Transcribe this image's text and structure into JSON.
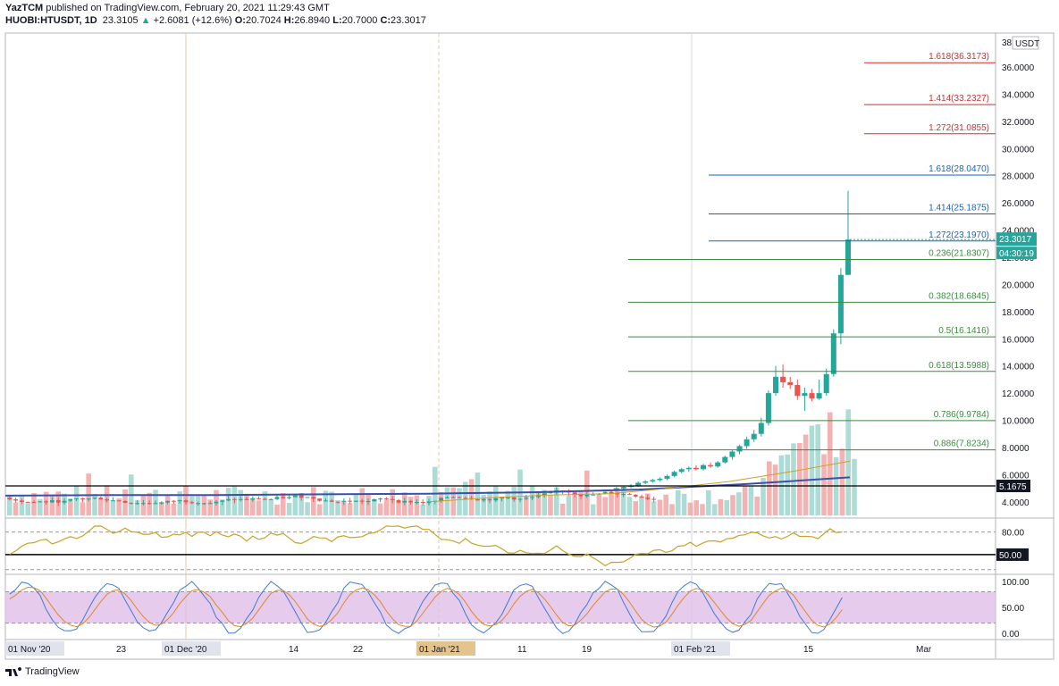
{
  "header": {
    "publisher": "YazTCM",
    "published_text": "published on TradingView.com, February 20, 2021 11:29:43 GMT",
    "symbol": "HUOBI:HTUSDT, 1D",
    "last": "23.3105",
    "change": "+2.6081 (+12.6%)",
    "o_label": "O:",
    "o": "20.7024",
    "h_label": "H:",
    "h": "26.8940",
    "l_label": "L:",
    "l": "20.7000",
    "c_label": "C:",
    "c": "23.3017"
  },
  "footer": {
    "brand": "TradingView"
  },
  "colors": {
    "up": "#26a69a",
    "down": "#ef5350",
    "fib_ext_red": "#d32f2f",
    "fib_ext_blue": "#1565c0",
    "fib_ret_green": "#388e3c",
    "ma_long": "#3f4fa5",
    "ma_short": "#c9a227",
    "rsi": "#c9a227",
    "stoch_k": "#3d7bd9",
    "stoch_d": "#e0872a",
    "stoch_band": "#e1bee7"
  },
  "chart_data": {
    "type": "candlestick",
    "title": "",
    "unit_label": "USDT",
    "price_axis": {
      "ticks": [
        "4.0000",
        "6.0000",
        "8.0000",
        "10.0000",
        "12.0000",
        "14.0000",
        "16.0000",
        "18.0000",
        "20.0000",
        "22.0000",
        "24.0000",
        "26.0000",
        "28.0000",
        "30.0000",
        "32.0000",
        "34.0000",
        "36.0000"
      ],
      "top_label": "38",
      "range": [
        3.0,
        38.5
      ]
    },
    "time_axis": {
      "labels": [
        "01 Nov '20",
        "23",
        "01 Dec '20",
        "14",
        "22",
        "01 Jan '21",
        "11",
        "19",
        "01 Feb '21",
        "15",
        "Mar"
      ],
      "highlighted": [
        "01 Nov '20",
        "01 Dec '20",
        "01 Jan '21",
        "01 Feb '21"
      ]
    },
    "current_price": {
      "value": 23.3017,
      "label": "23.3017",
      "countdown": "04:30:19"
    },
    "support_line": {
      "value": 5.1675,
      "label": "5.1675"
    },
    "fib_levels": [
      {
        "ratio": "1.618",
        "price": 36.3173,
        "label": "1.618(36.3173)",
        "kind": "ext_red"
      },
      {
        "ratio": "1.414",
        "price": 33.2327,
        "label": "1.414(33.2327)",
        "kind": "ext_red"
      },
      {
        "ratio": "1.272",
        "price": 31.0855,
        "label": "1.272(31.0855)",
        "kind": "ext_red"
      },
      {
        "ratio": "1.618",
        "price": 28.047,
        "label": "1.618(28.0470)",
        "kind": "ext_blue"
      },
      {
        "ratio": "1.414",
        "price": 25.1875,
        "label": "1.414(25.1875)",
        "kind": "ext_blue"
      },
      {
        "ratio": "1.272",
        "price": 23.197,
        "label": "1.272(23.1970)",
        "kind": "ext_blue"
      },
      {
        "ratio": "0.236",
        "price": 21.8307,
        "label": "0.236(21.8307)",
        "kind": "ret_green"
      },
      {
        "ratio": "0.382",
        "price": 18.6845,
        "label": "0.382(18.6845)",
        "kind": "ret_green"
      },
      {
        "ratio": "0.5",
        "price": 16.1416,
        "label": "0.5(16.1416)",
        "kind": "ret_green"
      },
      {
        "ratio": "0.618",
        "price": 13.5988,
        "label": "0.618(13.5988)",
        "kind": "ret_green"
      },
      {
        "ratio": "0.786",
        "price": 9.9784,
        "label": "0.786(9.9784)",
        "kind": "ret_green"
      },
      {
        "ratio": "0.886",
        "price": 7.8234,
        "label": "0.886(7.8234)",
        "kind": "ret_green"
      }
    ],
    "candles_recent": [
      {
        "o": 4.9,
        "h": 5.1,
        "l": 4.8,
        "c": 5.0
      },
      {
        "o": 5.0,
        "h": 5.2,
        "l": 4.9,
        "c": 5.1
      },
      {
        "o": 5.1,
        "h": 5.3,
        "l": 5.0,
        "c": 5.2
      },
      {
        "o": 5.2,
        "h": 5.5,
        "l": 5.1,
        "c": 5.4
      },
      {
        "o": 5.4,
        "h": 5.6,
        "l": 5.3,
        "c": 5.5
      },
      {
        "o": 5.5,
        "h": 5.7,
        "l": 5.4,
        "c": 5.6
      },
      {
        "o": 5.6,
        "h": 5.8,
        "l": 5.5,
        "c": 5.7
      },
      {
        "o": 5.7,
        "h": 6.0,
        "l": 5.6,
        "c": 5.9
      },
      {
        "o": 5.9,
        "h": 6.3,
        "l": 5.8,
        "c": 6.2
      },
      {
        "o": 6.2,
        "h": 6.5,
        "l": 6.1,
        "c": 6.4
      },
      {
        "o": 6.4,
        "h": 6.6,
        "l": 6.2,
        "c": 6.5
      },
      {
        "o": 6.5,
        "h": 6.7,
        "l": 6.3,
        "c": 6.4
      },
      {
        "o": 6.4,
        "h": 6.8,
        "l": 6.3,
        "c": 6.7
      },
      {
        "o": 6.7,
        "h": 6.9,
        "l": 6.5,
        "c": 6.6
      },
      {
        "o": 6.6,
        "h": 7.0,
        "l": 6.5,
        "c": 6.9
      },
      {
        "o": 6.9,
        "h": 7.4,
        "l": 6.8,
        "c": 7.3
      },
      {
        "o": 7.3,
        "h": 7.8,
        "l": 7.1,
        "c": 7.7
      },
      {
        "o": 7.7,
        "h": 8.2,
        "l": 7.5,
        "c": 8.1
      },
      {
        "o": 8.1,
        "h": 8.8,
        "l": 7.9,
        "c": 8.6
      },
      {
        "o": 8.6,
        "h": 9.3,
        "l": 8.4,
        "c": 9.0
      },
      {
        "o": 9.0,
        "h": 10.2,
        "l": 8.8,
        "c": 9.8
      },
      {
        "o": 9.8,
        "h": 12.2,
        "l": 9.6,
        "c": 12.0
      },
      {
        "o": 12.0,
        "h": 14.0,
        "l": 11.8,
        "c": 13.2
      },
      {
        "o": 13.2,
        "h": 14.1,
        "l": 12.4,
        "c": 12.8
      },
      {
        "o": 12.8,
        "h": 13.2,
        "l": 12.3,
        "c": 12.6
      },
      {
        "o": 12.6,
        "h": 13.0,
        "l": 11.5,
        "c": 11.8
      },
      {
        "o": 11.8,
        "h": 12.4,
        "l": 10.7,
        "c": 12.0
      },
      {
        "o": 12.0,
        "h": 12.3,
        "l": 11.4,
        "c": 11.6
      },
      {
        "o": 11.6,
        "h": 13.0,
        "l": 11.5,
        "c": 12.0
      },
      {
        "o": 12.0,
        "h": 13.8,
        "l": 11.8,
        "c": 13.4
      },
      {
        "o": 13.4,
        "h": 16.7,
        "l": 13.2,
        "c": 16.4
      },
      {
        "o": 16.4,
        "h": 21.2,
        "l": 15.6,
        "c": 20.7
      },
      {
        "o": 20.7024,
        "h": 26.894,
        "l": 20.7,
        "c": 23.3017
      }
    ],
    "moving_averages": [
      {
        "name": "",
        "description": "long-term MA",
        "values": [
          4.45,
          4.5,
          4.5,
          4.55,
          4.6,
          4.7,
          4.9,
          5.3,
          5.8
        ]
      },
      {
        "name": "",
        "description": "short-term MA",
        "values": [
          4.0,
          4.3,
          4.5,
          4.6,
          5.0,
          5.5,
          6.2,
          7.0
        ]
      }
    ],
    "rsi": {
      "ticks": [
        "80.00",
        "50.00"
      ],
      "highlighted": "50.00",
      "range": [
        25,
        95
      ]
    },
    "stoch_rsi": {
      "ticks": [
        "100.00",
        "50.00",
        "0.00"
      ],
      "band": [
        20,
        80
      ],
      "range": [
        -10,
        110
      ]
    }
  }
}
